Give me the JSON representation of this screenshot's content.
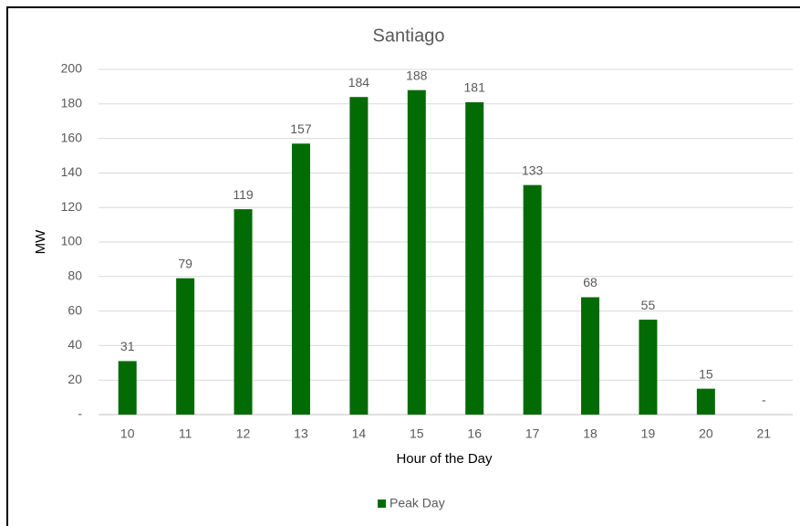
{
  "chart_data": {
    "type": "bar",
    "title": "Santiago",
    "x_label": "Hour of the Day",
    "y_label": "MW",
    "categories": [
      "10",
      "11",
      "12",
      "13",
      "14",
      "15",
      "16",
      "17",
      "18",
      "19",
      "20",
      "21"
    ],
    "series": [
      {
        "name": "Peak Day",
        "color": "#036b03",
        "values": [
          31,
          79,
          119,
          157,
          184,
          188,
          181,
          133,
          68,
          55,
          15,
          0
        ],
        "value_labels": [
          "31",
          "79",
          "119",
          "157",
          "184",
          "188",
          "181",
          "133",
          "68",
          "55",
          "15",
          "-"
        ]
      }
    ],
    "ylim": [
      0,
      200
    ],
    "yticks": [
      {
        "value": 0,
        "label": "-"
      },
      20,
      40,
      60,
      80,
      100,
      120,
      140,
      160,
      180,
      200
    ],
    "grid": true,
    "legend": "bottom"
  }
}
